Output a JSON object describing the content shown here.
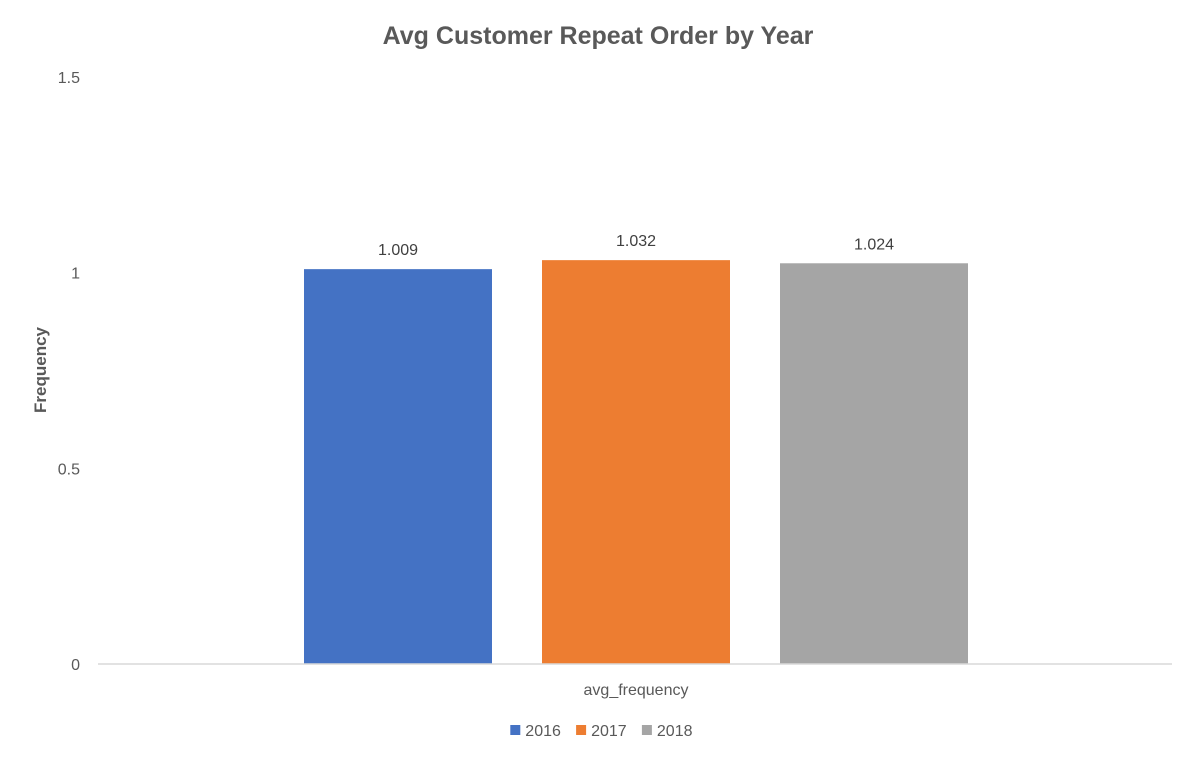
{
  "chart_data": {
    "type": "bar",
    "title": "Avg Customer Repeat Order by Year",
    "xlabel": "",
    "ylabel": "Frequency",
    "categories": [
      "avg_frequency"
    ],
    "ylim": [
      0,
      1.5
    ],
    "yticks": [
      "0",
      "0.5",
      "1",
      "1.5"
    ],
    "ytick_values": [
      0,
      0.5,
      1,
      1.5
    ],
    "grid": false,
    "legend_position": "bottom",
    "series": [
      {
        "name": "2016",
        "values": [
          1.009
        ],
        "label": "1.009",
        "color": "#4472C4"
      },
      {
        "name": "2017",
        "values": [
          1.032
        ],
        "label": "1.032",
        "color": "#ED7D31"
      },
      {
        "name": "2018",
        "values": [
          1.024
        ],
        "label": "1.024",
        "color": "#A5A5A5"
      }
    ]
  }
}
